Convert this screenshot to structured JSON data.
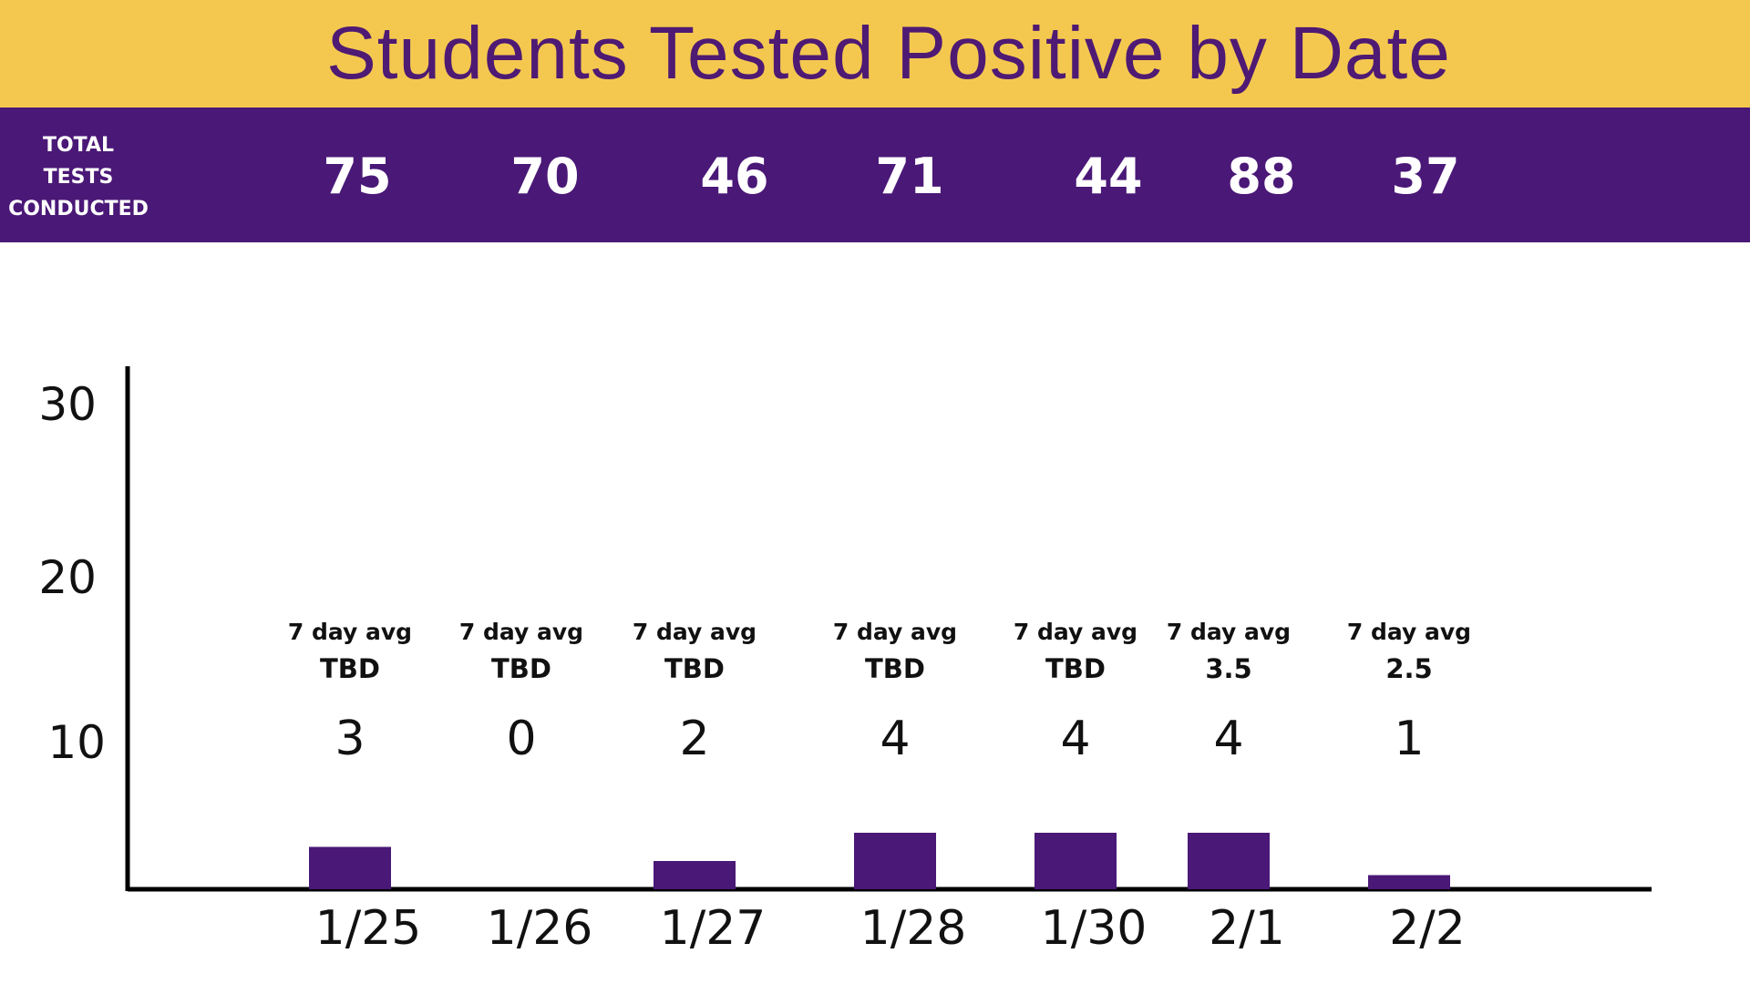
{
  "colors": {
    "title_bg": "#F4C84F",
    "title_text": "#4E1A73",
    "band_bg": "#4A1877",
    "band_text": "#FFFFFF",
    "bar": "#4A1877",
    "axis": "#000000"
  },
  "header": {
    "title": "Students Tested Positive by Date"
  },
  "totals": {
    "label_lines": [
      "TOTAL",
      "TESTS",
      "CONDUCTED"
    ],
    "values": [
      "75",
      "70",
      "46",
      "71",
      "44",
      "88",
      "37"
    ]
  },
  "chart_data": {
    "type": "bar",
    "title": "Students Tested Positive by Date",
    "xlabel": "",
    "ylabel": "",
    "categories": [
      "1/25",
      "1/26",
      "1/27",
      "1/28",
      "1/30",
      "2/1",
      "2/2"
    ],
    "values": [
      3,
      0,
      2,
      4,
      4,
      4,
      1
    ],
    "data_labels": [
      "3",
      "0",
      "2",
      "4",
      "4",
      "4",
      "1"
    ],
    "avg_label": "7 day avg",
    "seven_day_avg": [
      "TBD",
      "TBD",
      "TBD",
      "TBD",
      "TBD",
      "3.5",
      "2.5"
    ],
    "total_tests_conducted": [
      75,
      70,
      46,
      71,
      44,
      88,
      37
    ],
    "yticks": [
      10,
      20,
      30
    ],
    "grid": false,
    "legend": "none"
  }
}
